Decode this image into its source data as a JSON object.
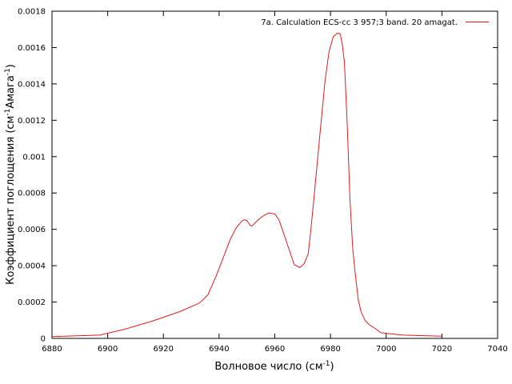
{
  "chart_data": {
    "type": "line",
    "xlabel": {
      "text": "Волновое число (см",
      "sup": "-1",
      "suffix": ")"
    },
    "ylabel": {
      "text": "Коэффициент поглощения (см",
      "sup1": "-1",
      "mid": "Амага",
      "sup2": "-1",
      "suffix": ")"
    },
    "xlim": [
      6880,
      7040
    ],
    "ylim": [
      0,
      0.0018
    ],
    "xticks": [
      "6880",
      "6900",
      "6920",
      "6940",
      "6960",
      "6980",
      "7000",
      "7020",
      "7040"
    ],
    "yticks": [
      "0",
      "0.0002",
      "0.0004",
      "0.0006",
      "0.0008",
      "0.001",
      "0.0012",
      "0.0014",
      "0.0016",
      "0.0018"
    ],
    "grid": false,
    "legend_position": "top-right",
    "series": [
      {
        "name": "7a. Calculation ECS-cc 3  957;3 band. 20 amagat.",
        "color": "#e31a1c",
        "x": [
          6880,
          6897,
          6906,
          6916,
          6926,
          6933,
          6936,
          6939,
          6942,
          6944,
          6946,
          6948,
          6949,
          6950,
          6951,
          6951.7,
          6952.5,
          6953.5,
          6955,
          6956.5,
          6958,
          6960,
          6961.5,
          6963,
          6965,
          6967,
          6969,
          6970.5,
          6972,
          6973,
          6974,
          6976,
          6978,
          6979.5,
          6981,
          6982.5,
          6983.5,
          6984.2,
          6985,
          6986,
          6987,
          6988,
          6989,
          6990,
          6991,
          6992.5,
          6994,
          6996,
          6998,
          7000,
          7006,
          7020
        ],
        "y": [
          1e-05,
          1.8e-05,
          5e-05,
          9.5e-05,
          0.000148,
          0.000195,
          0.00024,
          0.000345,
          0.000465,
          0.000545,
          0.000605,
          0.000643,
          0.000653,
          0.000648,
          0.000625,
          0.000618,
          0.000628,
          0.000645,
          0.000665,
          0.00068,
          0.00069,
          0.000685,
          0.000652,
          0.000585,
          0.000495,
          0.000405,
          0.00039,
          0.00041,
          0.000465,
          0.000605,
          0.000762,
          0.00109,
          0.00141,
          0.00158,
          0.00166,
          0.00168,
          0.001675,
          0.00162,
          0.00152,
          0.00118,
          0.00076,
          0.00049,
          0.00034,
          0.00021,
          0.000145,
          9.7e-05,
          7.4e-05,
          5.5e-05,
          3.2e-05,
          2.8e-05,
          1.8e-05,
          1.2e-05
        ]
      }
    ]
  }
}
